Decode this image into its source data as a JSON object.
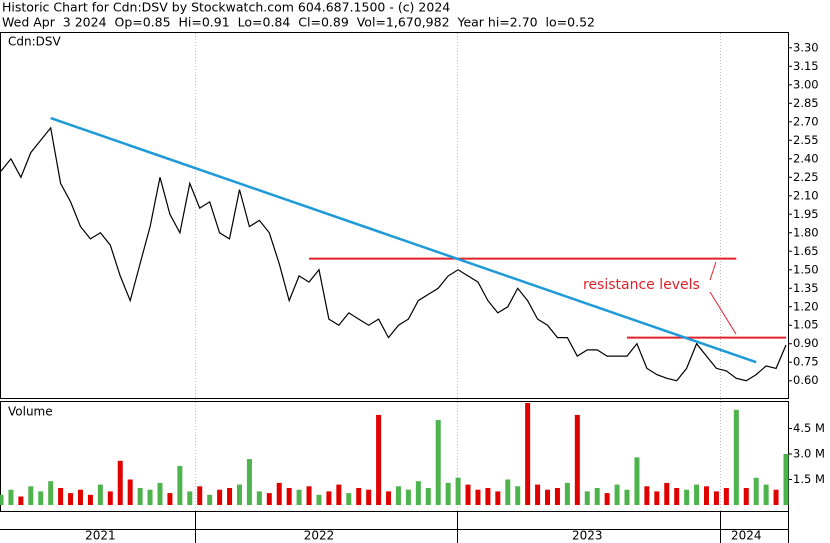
{
  "chart_data": [
    {
      "type": "line",
      "title": "Historic Chart for Cdn:DSV by Stockwatch.com 604.687.1500 - (c) 2024",
      "subtitle": "Wed Apr  3 2024  Op=0.85  Hi=0.91  Lo=0.84  Cl=0.89  Vol=1,670,982  Year hi=2.70  lo=0.52",
      "label": "Cdn:DSV",
      "color": "#000000",
      "categories": [
        null,
        null,
        null,
        null,
        null,
        null,
        null,
        null,
        null,
        null,
        null,
        null,
        null,
        null,
        null,
        null,
        null,
        null,
        null,
        null,
        null,
        null,
        null,
        null,
        null,
        null,
        null,
        null,
        null,
        null,
        null,
        null,
        null,
        null,
        null,
        null,
        null,
        null,
        null,
        null,
        null,
        null,
        null,
        null,
        null,
        null,
        null,
        null,
        null,
        null,
        null,
        null,
        null,
        null,
        null,
        null,
        null,
        null,
        null,
        null,
        null,
        null,
        null,
        null,
        null,
        null,
        null,
        null,
        null,
        null,
        null,
        null,
        null,
        null,
        null,
        null,
        null,
        null,
        null,
        null
      ],
      "values": [
        2.3,
        2.4,
        2.25,
        2.45,
        2.55,
        2.65,
        2.2,
        2.05,
        1.85,
        1.75,
        1.8,
        1.7,
        1.45,
        1.25,
        1.55,
        1.85,
        2.25,
        1.95,
        1.8,
        2.2,
        2.0,
        2.05,
        1.8,
        1.75,
        2.15,
        1.85,
        1.9,
        1.8,
        1.55,
        1.25,
        1.45,
        1.4,
        1.5,
        1.1,
        1.05,
        1.15,
        1.1,
        1.05,
        1.1,
        0.95,
        1.05,
        1.1,
        1.25,
        1.3,
        1.35,
        1.45,
        1.5,
        1.45,
        1.4,
        1.25,
        1.15,
        1.2,
        1.35,
        1.25,
        1.1,
        1.05,
        0.95,
        0.95,
        0.8,
        0.85,
        0.85,
        0.8,
        0.8,
        0.8,
        0.9,
        0.7,
        0.65,
        0.62,
        0.6,
        0.7,
        0.9,
        0.8,
        0.7,
        0.68,
        0.62,
        0.6,
        0.65,
        0.72,
        0.7,
        0.89
      ],
      "ylim": [
        0.46,
        3.42
      ],
      "yticks": [
        {
          "value": 3.3,
          "label": "3.30"
        },
        3.15,
        {
          "value": 3.0,
          "label": "3.00"
        },
        2.85,
        {
          "value": 2.7,
          "label": "2.70"
        },
        2.55,
        {
          "value": 2.4,
          "label": "2.40"
        },
        2.25,
        {
          "value": 2.1,
          "label": "2.10"
        },
        1.95,
        {
          "value": 1.8,
          "label": "1.80"
        },
        1.65,
        {
          "value": 1.5,
          "label": "1.50"
        },
        1.35,
        {
          "value": 1.2,
          "label": "1.20"
        },
        1.05,
        {
          "value": 0.9,
          "label": "0.90"
        },
        0.75,
        {
          "value": 0.6,
          "label": "0.60"
        }
      ],
      "trend_lines": [
        {
          "color": "#1e9ad8",
          "x": [
            5,
            76
          ],
          "values": [
            2.73,
            0.75
          ]
        }
      ],
      "levels": [
        {
          "color": "#e0202a",
          "x": [
            31,
            74
          ],
          "value": 1.59
        },
        {
          "color": "#e0202a",
          "x": [
            63,
            79
          ],
          "value": 0.95
        }
      ],
      "annotation": "resistance levels"
    },
    {
      "type": "bar",
      "label": "Volume",
      "categories": [
        null,
        null,
        null,
        null,
        null,
        null,
        null,
        null,
        null,
        null,
        "2021",
        null,
        null,
        null,
        null,
        null,
        null,
        null,
        null,
        null,
        null,
        null,
        null,
        null,
        null,
        null,
        null,
        null,
        null,
        null,
        null,
        null,
        "2022",
        null,
        null,
        null,
        null,
        null,
        null,
        null,
        null,
        null,
        null,
        null,
        null,
        null,
        null,
        null,
        null,
        null,
        null,
        null,
        null,
        null,
        null,
        null,
        null,
        null,
        null,
        "2023",
        null,
        null,
        null,
        null,
        null,
        null,
        null,
        null,
        null,
        null,
        null,
        null,
        null,
        null,
        null,
        "2024",
        null,
        null,
        null,
        null
      ],
      "values": [
        0.6,
        0.9,
        0.5,
        1.1,
        0.8,
        1.4,
        1.0,
        0.7,
        0.9,
        0.6,
        1.2,
        0.8,
        2.6,
        1.5,
        1.0,
        0.9,
        1.3,
        0.7,
        2.3,
        0.8,
        1.1,
        0.6,
        0.9,
        1.0,
        1.2,
        2.7,
        0.8,
        0.7,
        1.3,
        1.0,
        0.9,
        1.1,
        0.6,
        0.8,
        1.2,
        0.7,
        1.0,
        0.9,
        5.3,
        0.8,
        1.1,
        0.9,
        1.4,
        1.0,
        5.0,
        1.3,
        1.6,
        1.2,
        0.9,
        1.0,
        0.8,
        1.5,
        1.1,
        6.0,
        1.2,
        0.9,
        1.0,
        1.3,
        5.3,
        0.8,
        1.0,
        0.7,
        1.2,
        0.9,
        2.8,
        1.1,
        0.8,
        1.3,
        1.0,
        0.9,
        1.2,
        1.1,
        0.8,
        1.0,
        5.6,
        1.0,
        1.6,
        1.2,
        0.9,
        3.0
      ],
      "colors": [
        "#4db34d",
        "#4db34d",
        "#e00000",
        "#4db34d",
        "#4db34d",
        "#4db34d",
        "#e00000",
        "#e00000",
        "#e00000",
        "#e00000",
        "#4db34d",
        "#e00000",
        "#e00000",
        "#e00000",
        "#4db34d",
        "#4db34d",
        "#4db34d",
        "#e00000",
        "#4db34d",
        "#4db34d",
        "#e00000",
        "#4db34d",
        "#e00000",
        "#e00000",
        "#4db34d",
        "#4db34d",
        "#4db34d",
        "#e00000",
        "#e00000",
        "#e00000",
        "#4db34d",
        "#e00000",
        "#4db34d",
        "#e00000",
        "#e00000",
        "#4db34d",
        "#e00000",
        "#e00000",
        "#e00000",
        "#e00000",
        "#4db34d",
        "#4db34d",
        "#4db34d",
        "#4db34d",
        "#4db34d",
        "#4db34d",
        "#4db34d",
        "#e00000",
        "#e00000",
        "#e00000",
        "#e00000",
        "#4db34d",
        "#4db34d",
        "#e00000",
        "#e00000",
        "#e00000",
        "#e00000",
        "#4db34d",
        "#e00000",
        "#4db34d",
        "#4db34d",
        "#e00000",
        "#4db34d",
        "#4db34d",
        "#4db34d",
        "#e00000",
        "#e00000",
        "#e00000",
        "#e00000",
        "#4db34d",
        "#4db34d",
        "#e00000",
        "#e00000",
        "#e00000",
        "#4db34d",
        "#e00000",
        "#4db34d",
        "#4db34d",
        "#e00000",
        "#4db34d"
      ],
      "ylim": [
        0,
        6
      ],
      "yticks": [
        {
          "value": 1.5,
          "label": "1.5 M"
        },
        {
          "value": 3.0,
          "label": "3.0 M"
        },
        {
          "value": 4.5,
          "label": "4.5 M"
        }
      ]
    }
  ]
}
